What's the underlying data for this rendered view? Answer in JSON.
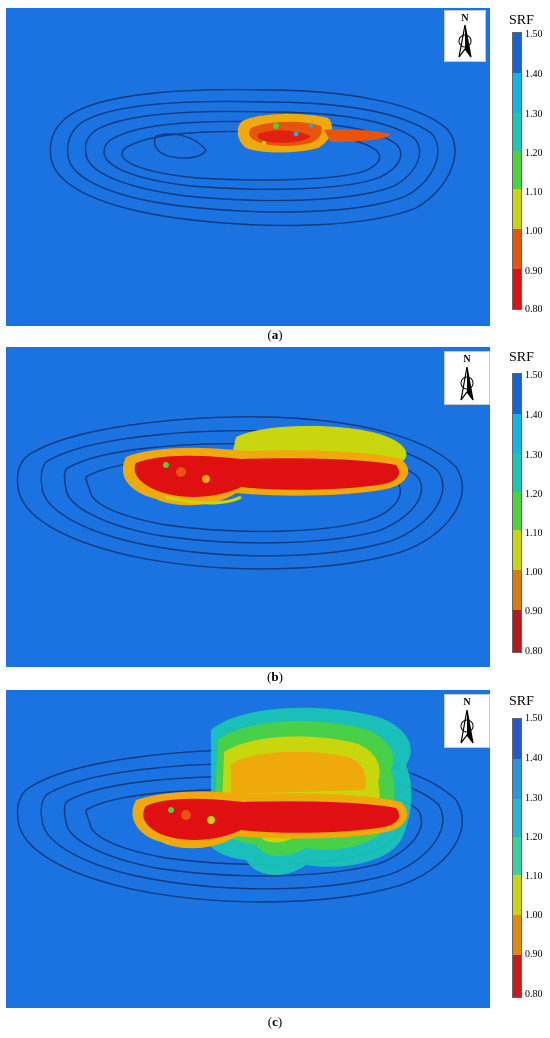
{
  "legend": {
    "title": "SRF",
    "ticks": [
      "1.50",
      "1.40",
      "1.30",
      "1.20",
      "1.10",
      "1.00",
      "0.90",
      "0.80"
    ],
    "colors": [
      "#1464d8",
      "#11b4e8",
      "#19c8b4",
      "#4cd23c",
      "#c8d60e",
      "#f0a90a",
      "#e8540a",
      "#e00f12"
    ]
  },
  "north_label": "N",
  "background_color": "#1a73e0",
  "panels": [
    {
      "label": "a",
      "caption_open": "(",
      "caption_close": ")"
    },
    {
      "label": "b",
      "caption_open": "(",
      "caption_close": ")"
    },
    {
      "label": "c",
      "caption_open": "(",
      "caption_close": ")"
    }
  ]
}
